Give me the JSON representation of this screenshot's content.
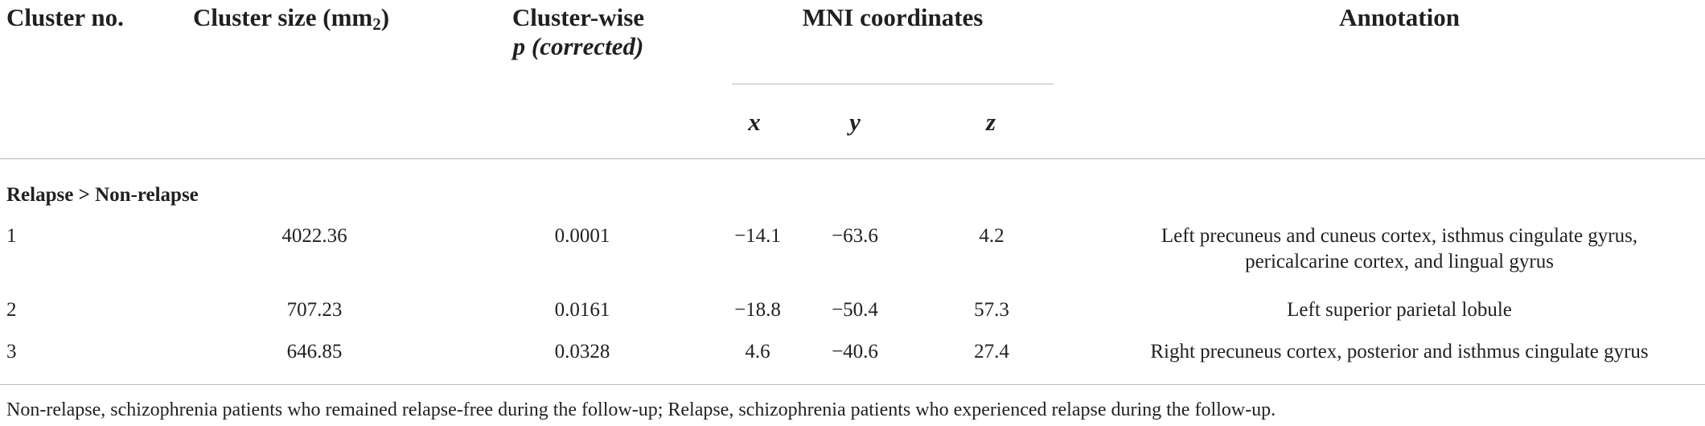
{
  "table": {
    "headers": {
      "cluster_no": "Cluster no.",
      "cluster_size": "Cluster size (mm",
      "cluster_size_sub": "2",
      "cluster_size_close": ")",
      "cluster_wise_line1": "Cluster-wise",
      "cluster_wise_line2": "p (corrected)",
      "mni": "MNI coordinates",
      "x": "x",
      "y": "y",
      "z": "z",
      "annotation": "Annotation"
    },
    "section_label": "Relapse > Non-relapse",
    "rows": [
      {
        "cluster_no": "1",
        "cluster_size": "4022.36",
        "p": "0.0001",
        "x": "−14.1",
        "y": "−63.6",
        "z": "4.2",
        "annotation_line1": "Left precuneus and cuneus cortex, isthmus cingulate gyrus,",
        "annotation_line2": "pericalcarine cortex, and lingual gyrus"
      },
      {
        "cluster_no": "2",
        "cluster_size": "707.23",
        "p": "0.0161",
        "x": "−18.8",
        "y": "−50.4",
        "z": "57.3",
        "annotation_line1": "Left superior parietal lobule",
        "annotation_line2": ""
      },
      {
        "cluster_no": "3",
        "cluster_size": "646.85",
        "p": "0.0328",
        "x": "4.6",
        "y": "−40.6",
        "z": "27.4",
        "annotation_line1": "Right precuneus cortex, posterior and isthmus cingulate gyrus",
        "annotation_line2": ""
      }
    ],
    "footnote": "Non-relapse, schizophrenia patients who remained relapse-free during the follow-up; Relapse, schizophrenia patients who experienced relapse during the follow-up."
  }
}
